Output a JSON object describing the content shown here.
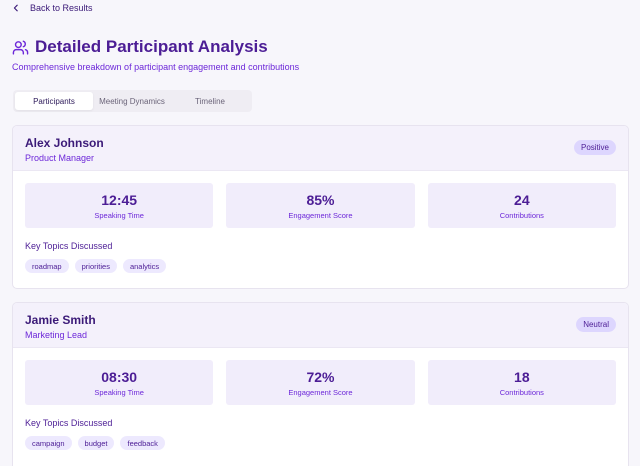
{
  "back_link": {
    "label": "Back to Results",
    "icon": "chevron-left-icon"
  },
  "header": {
    "title": "Detailed Participant Analysis",
    "subtitle": "Comprehensive breakdown of participant engagement and contributions",
    "icon": "users-icon"
  },
  "tabs": [
    {
      "label": "Participants",
      "active": true
    },
    {
      "label": "Meeting Dynamics",
      "active": false
    },
    {
      "label": "Timeline",
      "active": false
    }
  ],
  "participants": [
    {
      "name": "Alex Johnson",
      "role": "Product Manager",
      "sentiment": "Positive",
      "stats": [
        {
          "value": "12:45",
          "label": "Speaking Time"
        },
        {
          "value": "85%",
          "label": "Engagement Score"
        },
        {
          "value": "24",
          "label": "Contributions"
        }
      ],
      "topics_title": "Key Topics Discussed",
      "topics": [
        "roadmap",
        "priorities",
        "analytics"
      ]
    },
    {
      "name": "Jamie Smith",
      "role": "Marketing Lead",
      "sentiment": "Neutral",
      "stats": [
        {
          "value": "08:30",
          "label": "Speaking Time"
        },
        {
          "value": "72%",
          "label": "Engagement Score"
        },
        {
          "value": "18",
          "label": "Contributions"
        }
      ],
      "topics_title": "Key Topics Discussed",
      "topics": [
        "campaign",
        "budget",
        "feedback"
      ]
    }
  ],
  "colors": {
    "accent": "#4c1d95",
    "accent_light": "#6d28d9",
    "badge_bg": "#ddd6fe",
    "stat_bg": "#f1edfb"
  }
}
